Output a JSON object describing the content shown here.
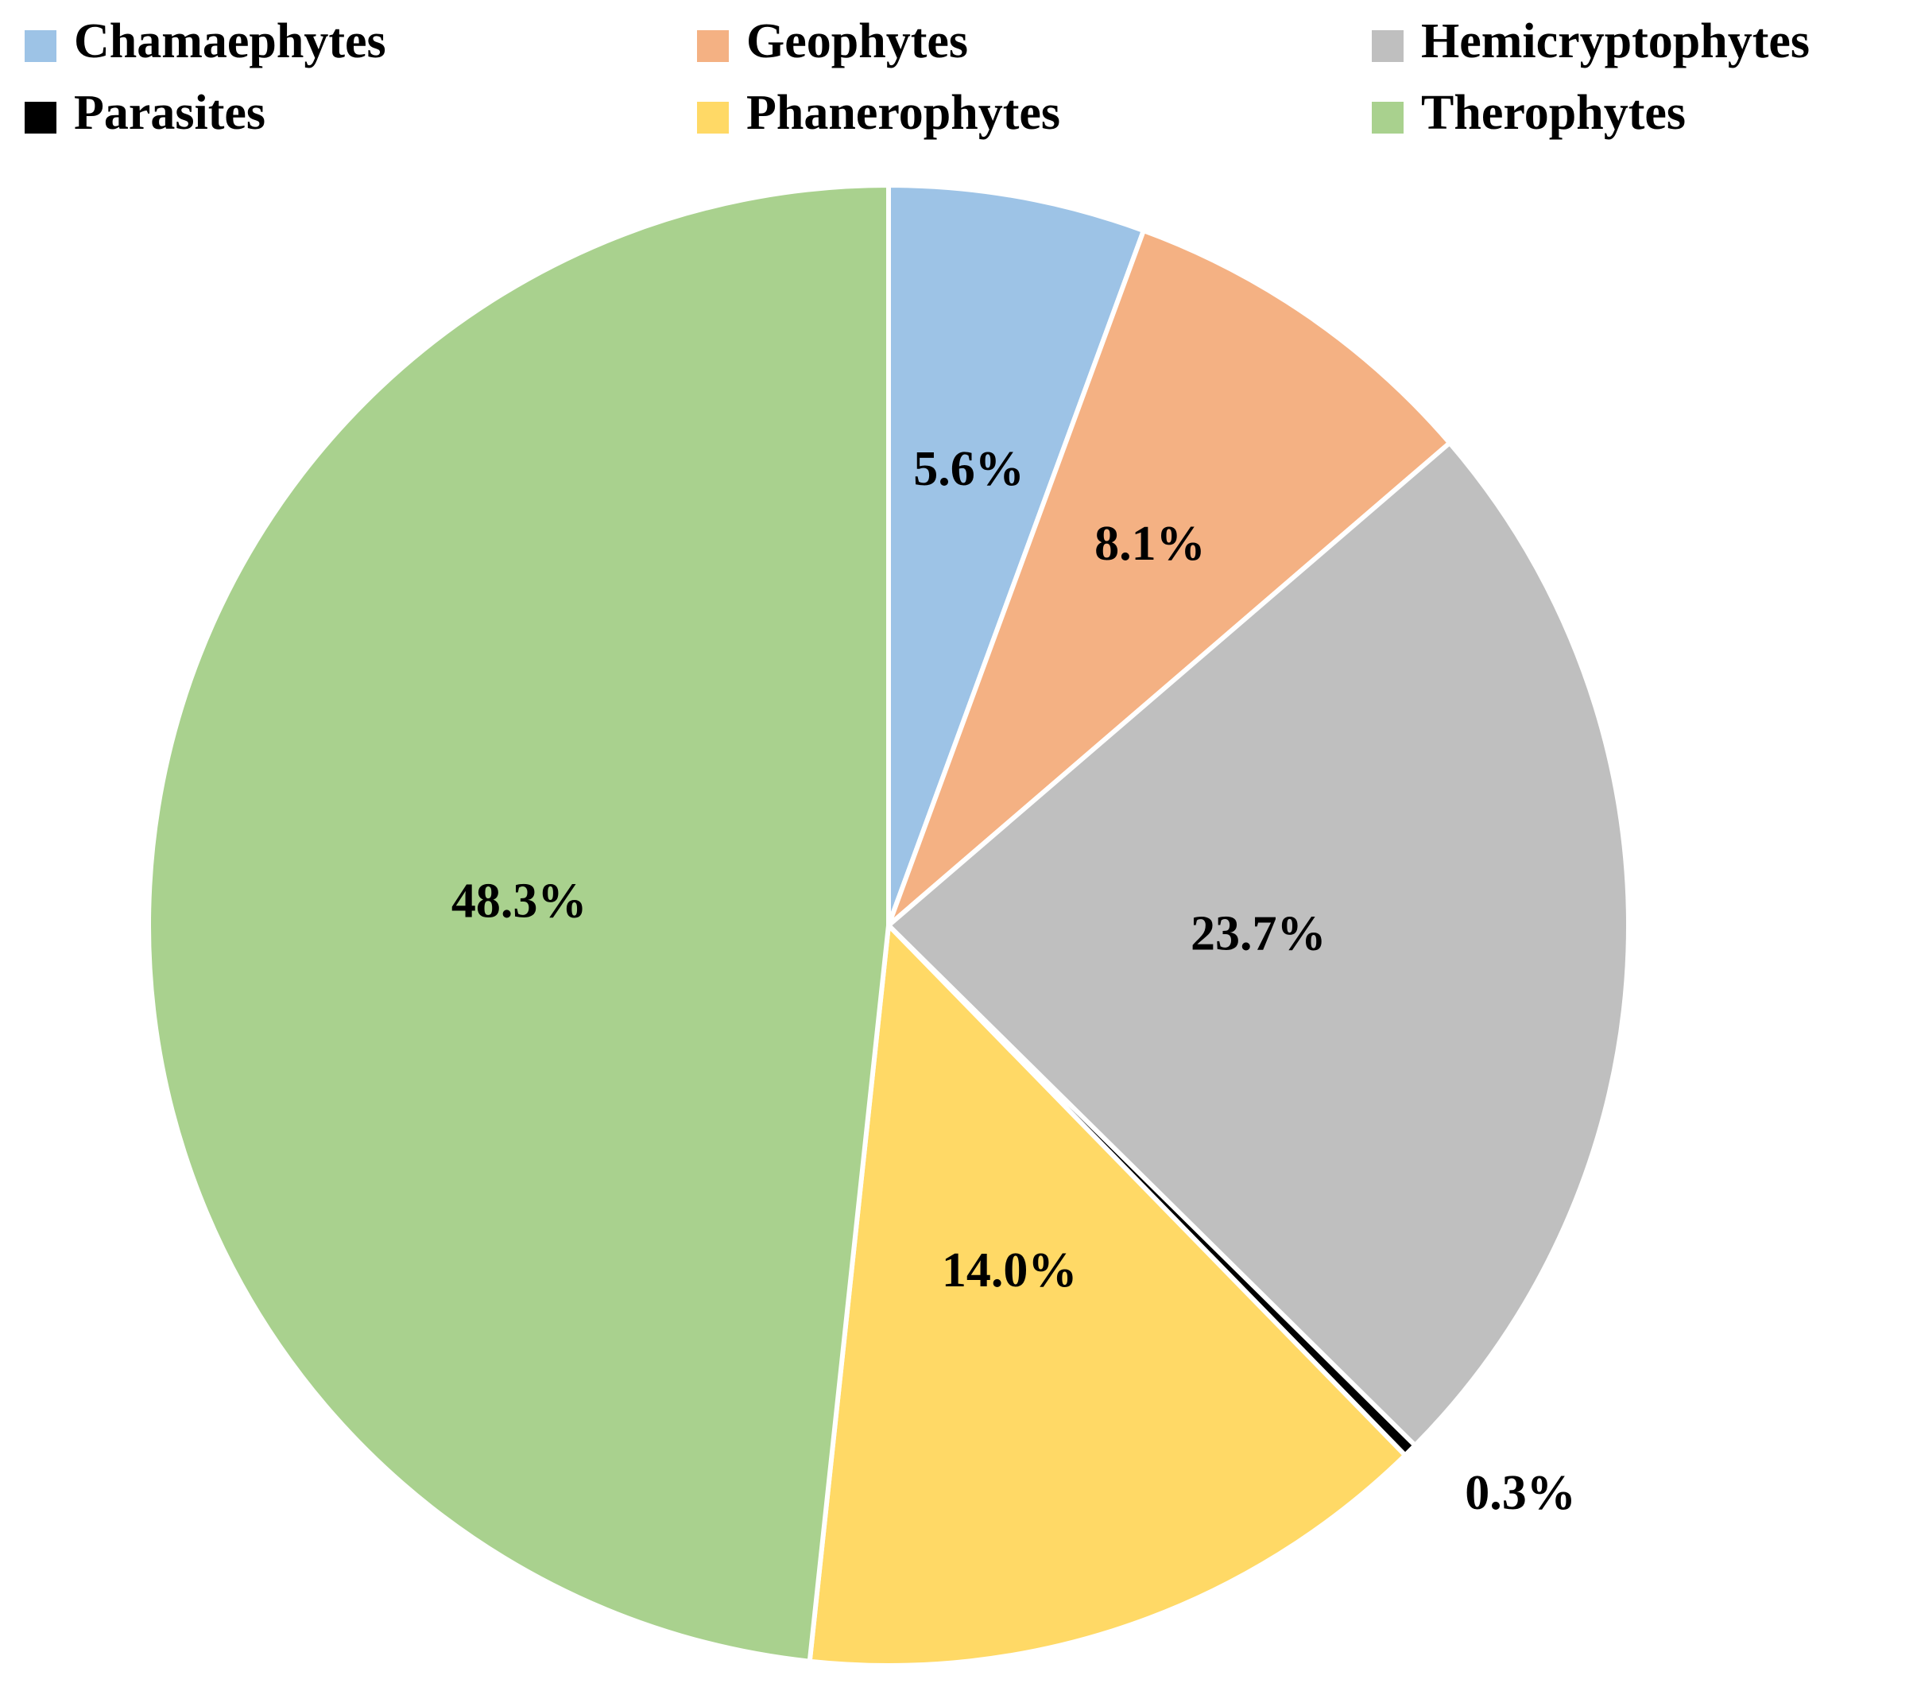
{
  "chart_data": {
    "type": "pie",
    "categories": [
      "Chamaephytes",
      "Geophytes",
      "Hemicryptophytes",
      "Parasites",
      "Phanerophytes",
      "Therophytes"
    ],
    "values": [
      5.6,
      8.1,
      23.7,
      0.3,
      14.0,
      48.3
    ],
    "value_labels": [
      "5.6%",
      "8.1%",
      "23.7%",
      "0.3%",
      "14.0%",
      "48.3%"
    ],
    "colors": [
      "#9dc3e6",
      "#f4b183",
      "#bfbfbf",
      "#000000",
      "#ffd966",
      "#a9d18e"
    ]
  }
}
